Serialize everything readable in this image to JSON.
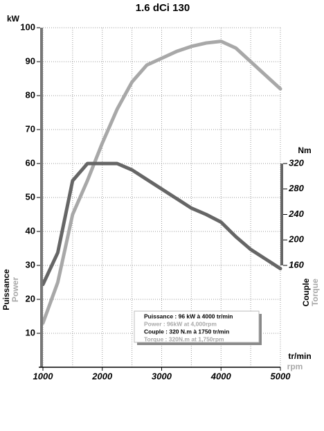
{
  "chart_data": {
    "type": "line",
    "title": "1.6 dCi 130",
    "y_label": "kW",
    "y2_label": "Nm",
    "x_label": "tr/min",
    "x_label_en": "rpm",
    "left_axis_title": "Puissance",
    "left_axis_title_en": "Power",
    "right_axis_title": "Couple",
    "right_axis_title_en": "Torque",
    "x": [
      1000,
      1250,
      1500,
      1750,
      2000,
      2250,
      2500,
      2750,
      3000,
      3250,
      3500,
      3750,
      4000,
      4250,
      4500,
      4750,
      5000
    ],
    "series": [
      {
        "color": "#a8a8a8",
        "values": [
          13,
          25,
          45,
          55,
          66,
          76,
          84,
          89,
          91,
          93,
          94.5,
          95.5,
          96,
          94,
          90,
          86,
          82
        ]
      },
      {
        "color": "#666666",
        "axis": "y2",
        "values": [
          130,
          180,
          293,
          320,
          320,
          320,
          310,
          295,
          280,
          265,
          250,
          240,
          228,
          205,
          185,
          170,
          155
        ]
      }
    ],
    "xlim": [
      1000,
      5000
    ],
    "xticks": [
      1000,
      2000,
      3000,
      4000,
      5000
    ],
    "xgrid_lines": [
      1000,
      1500,
      2000,
      2500,
      3000,
      3500,
      4000,
      4500,
      5000
    ],
    "ylim": [
      0,
      100
    ],
    "yticks": [
      10,
      20,
      30,
      40,
      50,
      60,
      70,
      80,
      90,
      100
    ],
    "y2lim": [
      0,
      533.33
    ],
    "y2ticks": [
      160,
      200,
      240,
      280,
      320
    ],
    "grid": true,
    "notes": [
      "Puissance : 96 kW à 4000 tr/min",
      "Power : 96kW at 4,000rpm",
      "Couple : 320 N.m à 1750 tr/min",
      "Torque : 320N.m at 1,750rpm"
    ]
  }
}
